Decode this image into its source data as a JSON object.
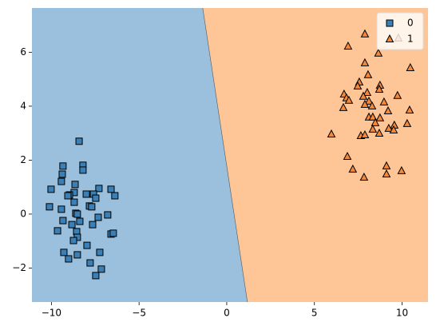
{
  "chart_data": {
    "type": "decision_regions",
    "xlim": [
      -11.11,
      11.48
    ],
    "ylim": [
      -3.26,
      7.64
    ],
    "xticks": [
      {
        "value": -10,
        "label": "−10"
      },
      {
        "value": -5,
        "label": "−5"
      },
      0,
      5,
      10
    ],
    "yticks": [
      {
        "value": -2,
        "label": "−2"
      },
      0,
      2,
      4,
      6
    ],
    "boundary": {
      "x": [
        -1.37,
        1.18
      ],
      "y": [
        7.64,
        -3.26
      ]
    },
    "region_colors": [
      "#9ac0dd",
      "#fec596"
    ],
    "legend": "upper right",
    "series": [
      {
        "name": "0",
        "marker": "square",
        "color": "#3a7fb6",
        "x": [
          -8.42,
          -9.34,
          -8.2,
          -9.38,
          -8.2,
          -9.43,
          -8.65,
          -10.02,
          -7.29,
          -6.6,
          -8.7,
          -8.97,
          -8.01,
          -7.6,
          -9.06,
          -6.38,
          -7.47,
          -8.7,
          -7.83,
          -10.11,
          -9.43,
          -7.7,
          -8.61,
          -8.52,
          -6.79,
          -9.34,
          -7.33,
          -8.38,
          -8.83,
          -7.65,
          -6.6,
          -6.47,
          -8.56,
          -9.65,
          -8.52,
          -8.74,
          -7.97,
          -9.29,
          -8.52,
          -7.24,
          -9.02,
          -7.79,
          -7.15,
          -7.47
        ],
        "y": [
          2.7,
          1.78,
          1.81,
          1.48,
          1.63,
          1.21,
          1.1,
          0.92,
          0.95,
          0.92,
          0.8,
          0.71,
          0.74,
          0.74,
          0.68,
          0.68,
          0.59,
          0.44,
          0.3,
          0.27,
          0.18,
          0.27,
          0.03,
          0.0,
          -0.03,
          -0.24,
          -0.12,
          -0.27,
          -0.39,
          -0.39,
          -0.74,
          -0.71,
          -0.65,
          -0.62,
          -0.86,
          -0.98,
          -1.16,
          -1.42,
          -1.51,
          -1.42,
          -1.66,
          -1.81,
          -2.04,
          -2.28
        ]
      },
      {
        "name": "1",
        "marker": "triangle",
        "color": "#f5883a",
        "x": [
          7.88,
          6.92,
          8.65,
          7.88,
          9.79,
          10.47,
          8.06,
          7.56,
          7.47,
          8.74,
          8.7,
          6.69,
          6.83,
          6.97,
          8.01,
          7.79,
          9.74,
          8.97,
          8.11,
          7.88,
          6.65,
          8.29,
          10.43,
          9.2,
          8.11,
          8.33,
          8.74,
          8.47,
          10.29,
          9.56,
          9.24,
          9.52,
          8.33,
          7.65,
          7.88,
          8.7,
          5.97,
          6.88,
          9.11,
          7.19,
          9.97,
          9.11,
          7.83
        ],
        "y": [
          6.67,
          6.22,
          5.96,
          5.6,
          6.52,
          5.42,
          5.16,
          4.89,
          4.74,
          4.77,
          4.62,
          4.44,
          4.3,
          4.21,
          4.5,
          4.36,
          4.39,
          4.15,
          4.18,
          4.06,
          3.94,
          4.0,
          3.85,
          3.82,
          3.59,
          3.59,
          3.56,
          3.38,
          3.35,
          3.29,
          3.17,
          3.11,
          3.14,
          2.9,
          2.93,
          2.99,
          2.96,
          2.13,
          1.78,
          1.66,
          1.6,
          1.48,
          1.36
        ]
      }
    ]
  }
}
